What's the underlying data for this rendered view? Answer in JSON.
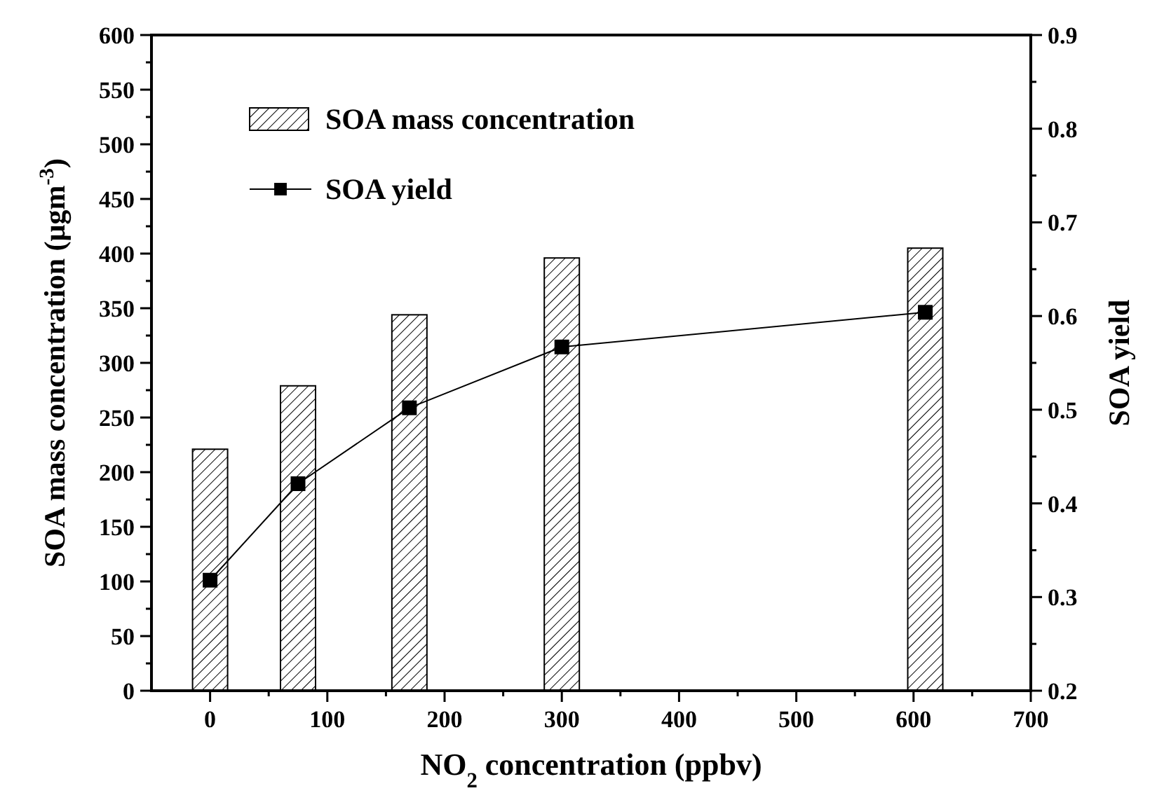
{
  "chart_data": {
    "type": "bar",
    "xlabel": "NO$_{2}$ concentration (ppbv)",
    "ylabel": "SOA mass concentration (μgm$^{-3}$)",
    "y2label": "SOA yield",
    "x": [
      0,
      75,
      170,
      300,
      610
    ],
    "series": [
      {
        "name": "SOA mass concentration",
        "color": "#000000",
        "values": [
          221,
          279,
          344,
          396,
          405
        ]
      },
      {
        "name": "SOA yield",
        "type": "line",
        "color": "#000000",
        "axis": "y2",
        "marker": "square",
        "line_style": "solid",
        "values": [
          0.318,
          0.421,
          0.502,
          0.567,
          0.604
        ]
      }
    ],
    "xlim": [
      -50,
      700
    ],
    "xticks": [
      0,
      {
        "value": 50,
        "label": null
      },
      100,
      {
        "value": 150,
        "label": null
      },
      200,
      {
        "value": 250,
        "label": null
      },
      300,
      {
        "value": 350,
        "label": null
      },
      400,
      {
        "value": 450,
        "label": null
      },
      500,
      {
        "value": 550,
        "label": null
      },
      600,
      {
        "value": 650,
        "label": null
      },
      700
    ],
    "ylim": [
      0,
      600
    ],
    "yticks": [
      0,
      {
        "value": 25,
        "label": null
      },
      50,
      {
        "value": 75,
        "label": null
      },
      100,
      {
        "value": 125,
        "label": null
      },
      150,
      {
        "value": 175,
        "label": null
      },
      200,
      {
        "value": 225,
        "label": null
      },
      250,
      {
        "value": 275,
        "label": null
      },
      300,
      {
        "value": 325,
        "label": null
      },
      350,
      {
        "value": 375,
        "label": null
      },
      400,
      {
        "value": 425,
        "label": null
      },
      450,
      {
        "value": 475,
        "label": null
      },
      500,
      {
        "value": 525,
        "label": null
      },
      550,
      {
        "value": 575,
        "label": null
      },
      600
    ],
    "y2lim": [
      0.2,
      0.9
    ],
    "y2ticks": [
      {
        "value": 0.2,
        "label": "0.2"
      },
      {
        "value": 0.25,
        "label": null
      },
      {
        "value": 0.3,
        "label": "0.3"
      },
      {
        "value": 0.35,
        "label": null
      },
      {
        "value": 0.4,
        "label": "0.4"
      },
      {
        "value": 0.45,
        "label": null
      },
      {
        "value": 0.5,
        "label": "0.5"
      },
      {
        "value": 0.55,
        "label": null
      },
      {
        "value": 0.6,
        "label": "0.6"
      },
      {
        "value": 0.65,
        "label": null
      },
      {
        "value": 0.7,
        "label": "0.7"
      },
      {
        "value": 0.75,
        "label": null
      },
      {
        "value": 0.8,
        "label": "0.8"
      },
      {
        "value": 0.85,
        "label": null
      },
      {
        "value": 0.9,
        "label": "0.9"
      }
    ],
    "legend": "top left",
    "grid": false
  }
}
